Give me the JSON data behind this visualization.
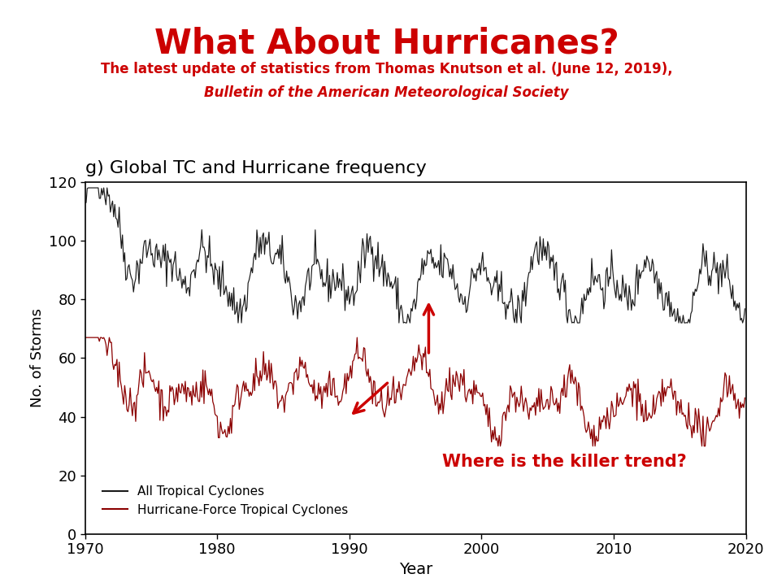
{
  "title": "What About Hurricanes?",
  "subtitle1": "The latest update of statistics from Thomas Knutson et al. (June 12, 2019),",
  "subtitle2": "Bulletin of the American Meteorological Society",
  "chart_title": "g) Global TC and Hurricane frequency",
  "xlabel": "Year",
  "ylabel": "No. of Storms",
  "annotation": "Where is the killer trend?",
  "legend1": "All Tropical Cyclones",
  "legend2": "Hurricane-Force Tropical Cyclones",
  "xlim": [
    1970,
    2020
  ],
  "ylim": [
    0,
    120
  ],
  "yticks": [
    0,
    20,
    40,
    60,
    80,
    100,
    120
  ],
  "xticks": [
    1970,
    1980,
    1990,
    2000,
    2010,
    2020
  ],
  "title_color": "#cc0000",
  "subtitle_color": "#cc0000",
  "black_line_color": "#1a1a1a",
  "red_line_color": "#8b0000",
  "arrow_color": "#cc0000",
  "background_color": "#ffffff",
  "seed": 42
}
